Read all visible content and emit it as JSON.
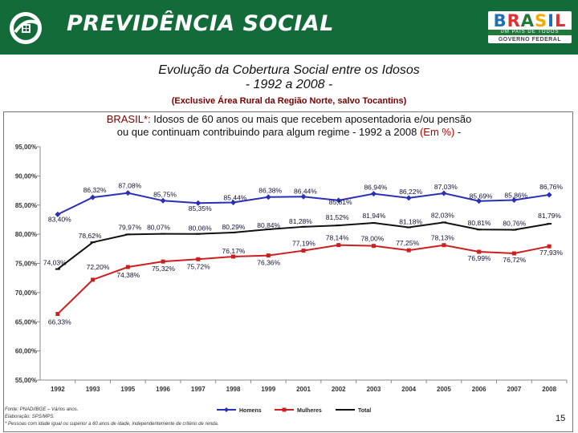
{
  "header": {
    "brand": "PREVIDÊNCIA SOCIAL",
    "gov_brasil": "BRASIL",
    "gov_sub1": "UM PAÍS DE TODOS",
    "gov_sub2": "GOVERNO FEDERAL"
  },
  "title": {
    "line1": "Evolução da Cobertura Social entre os Idosos",
    "line2": "- 1992 a 2008 -",
    "note": "(Exclusive Área Rural da Região Norte, salvo Tocantins)"
  },
  "chart_title": {
    "prefix": "BRASIL*:",
    "line1": " Idosos de 60 anos ou mais que recebem aposentadoria e/ou pensão",
    "line2": "ou que continuam contribuindo para algum regime - 1992 a 2008 ",
    "highlight": "(Em %)",
    "suffix": " -"
  },
  "footer": {
    "source": "Fonte: PNAD/IBGE – Vários anos.",
    "elab": "Elaboração: SPS/MPS.",
    "note": "* Pessoas com idade igual ou superior a 60 anos de idade, independentemente de critério de renda."
  },
  "page_number": "15",
  "colors": {
    "header_bg": "#146b3a",
    "homens": "#2a2fb8",
    "mulheres": "#cc1f1f",
    "total": "#111111"
  },
  "chart_data": {
    "type": "line",
    "categories": [
      "1992",
      "1993",
      "1995",
      "1996",
      "1997",
      "1998",
      "1999",
      "2001",
      "2002",
      "2003",
      "2004",
      "2005",
      "2006",
      "2007",
      "2008"
    ],
    "ylim": [
      55,
      95
    ],
    "yticks": [
      "55,00%",
      "60,00%",
      "65,00%",
      "70,00%",
      "75,00%",
      "80,00%",
      "85,00%",
      "90,00%",
      "95,00%"
    ],
    "series": [
      {
        "name": "Homens",
        "values": [
          83.4,
          86.32,
          87.08,
          85.75,
          85.35,
          85.44,
          86.38,
          86.44,
          85.81,
          86.94,
          86.22,
          87.03,
          85.69,
          85.86,
          86.76
        ],
        "labels": [
          "83,40%",
          "86,32%",
          "87,08%",
          "85,75%",
          "85,35%",
          "85,44%",
          "86,38%",
          "86,44%",
          "85,81%",
          "86,94%",
          "86,22%",
          "87,03%",
          "85,69%",
          "85,86%",
          "86,76%"
        ]
      },
      {
        "name": "Mulheres",
        "values": [
          66.33,
          72.2,
          74.38,
          75.32,
          75.72,
          76.17,
          76.36,
          77.19,
          78.14,
          78.0,
          77.25,
          78.13,
          76.99,
          76.72,
          77.93
        ],
        "labels": [
          "66,33%",
          "72,20%",
          "74,38%",
          "75,32%",
          "75,72%",
          "76,17%",
          "76,36%",
          "77,19%",
          "78,14%",
          "78,00%",
          "77,25%",
          "78,13%",
          "76,99%",
          "76,72%",
          "77,93%"
        ]
      },
      {
        "name": "Total",
        "values": [
          74.03,
          78.62,
          79.97,
          80.07,
          80.06,
          80.29,
          80.84,
          81.28,
          81.52,
          81.94,
          81.18,
          82.03,
          80.81,
          80.76,
          81.79
        ],
        "labels": [
          "74,03%",
          "78,62%",
          "79,97%",
          "80,07%",
          "80,06%",
          "80,29%",
          "80,84%",
          "81,28%",
          "81,52%",
          "81,94%",
          "81,18%",
          "82,03%",
          "80,81%",
          "80,76%",
          "81,79%"
        ]
      }
    ],
    "legend": [
      "Homens",
      "Mulheres",
      "Total"
    ]
  }
}
